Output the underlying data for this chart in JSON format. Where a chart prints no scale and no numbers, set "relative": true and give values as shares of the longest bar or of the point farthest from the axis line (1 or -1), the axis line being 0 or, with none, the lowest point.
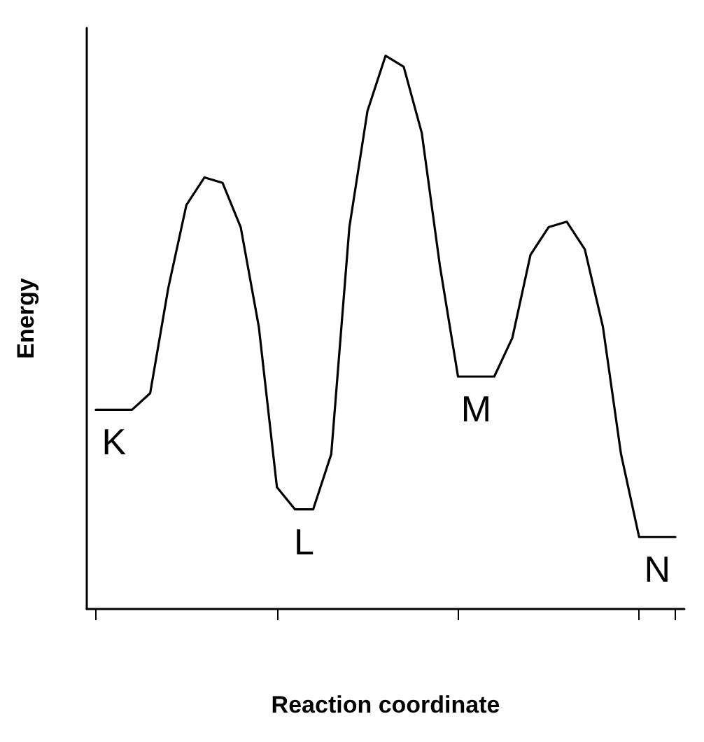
{
  "chart_data": {
    "type": "line",
    "relative": true,
    "xlabel": "Reaction coordinate",
    "ylabel": "Energy",
    "categories": [
      null,
      null,
      null,
      null,
      null,
      null,
      null,
      null,
      null,
      null,
      null,
      null,
      null,
      null,
      null,
      null,
      null,
      null,
      null,
      null,
      null,
      null,
      null,
      null,
      null,
      null,
      null,
      null,
      null,
      null,
      null,
      null,
      null
    ],
    "series": [
      {
        "color": "#000000",
        "values": [
          0.36,
          0.36,
          0.36,
          0.39,
          0.58,
          0.73,
          0.78,
          0.77,
          0.69,
          0.51,
          0.22,
          0.18,
          0.18,
          0.28,
          0.69,
          0.9,
          1.0,
          0.98,
          0.86,
          0.62,
          0.42,
          0.42,
          0.42,
          0.49,
          0.64,
          0.69,
          0.7,
          0.65,
          0.51,
          0.28,
          0.13,
          0.13,
          0.13
        ]
      }
    ],
    "annotations": [
      "K",
      "L",
      "M",
      "N"
    ],
    "grid": false,
    "marker": "none",
    "line_style": "solid"
  }
}
